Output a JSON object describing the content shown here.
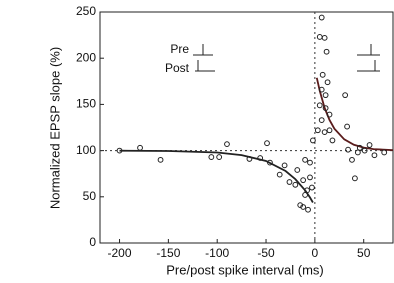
{
  "chart_data": {
    "type": "scatter",
    "xlabel": "Pre/post spike interval (ms)",
    "ylabel": "Normalized EPSP slope (%)",
    "inset_labels": [
      "Pre",
      "Post"
    ],
    "xlim": [
      -220,
      80
    ],
    "ylim": [
      0,
      250
    ],
    "xticks": [
      -200,
      -150,
      -100,
      -50,
      0,
      50
    ],
    "yticks": [
      0,
      50,
      100,
      150,
      200,
      250
    ],
    "points": {
      "color": "#222222",
      "x": [
        -200,
        -179,
        -158,
        -106,
        -98,
        -90,
        -67,
        -56,
        -49,
        -46,
        -36,
        -31,
        -26,
        -20,
        -18,
        -15,
        -12,
        -10,
        -8,
        -7,
        -5,
        -3,
        -5,
        -12,
        -10,
        -2,
        7,
        5,
        10,
        12,
        8,
        13,
        7,
        11,
        5,
        11,
        15,
        7,
        3,
        10,
        15,
        18,
        31,
        33,
        34,
        38,
        41,
        46,
        51,
        56,
        61,
        71,
        44
      ],
      "y": [
        100,
        103,
        90,
        93,
        93,
        107,
        91,
        92,
        108,
        87,
        74,
        84,
        66,
        63,
        79,
        41,
        39,
        52,
        57,
        36,
        71,
        60,
        87,
        68,
        90,
        111,
        244,
        223,
        222,
        207,
        182,
        174,
        166,
        160,
        149,
        146,
        139,
        133,
        122,
        120,
        122,
        111,
        160,
        126,
        101,
        90,
        70,
        103,
        100,
        106,
        95,
        98,
        98
      ]
    },
    "fits": [
      {
        "color": "#222222",
        "x": [
          -200,
          -150,
          -100,
          -75,
          -50,
          -30,
          -20,
          -10,
          -5,
          -2
        ],
        "y": [
          99.9,
          99.6,
          97.9,
          95.1,
          88.7,
          77.9,
          69.2,
          57.0,
          49.2,
          43.8
        ]
      },
      {
        "color": "#5a1c1c",
        "x": [
          2,
          5,
          10,
          15,
          20,
          30,
          40,
          50,
          60,
          80
        ],
        "y": [
          178.8,
          164.5,
          146.2,
          133.1,
          123.7,
          112.2,
          106.3,
          103.2,
          101.6,
          100.4
        ]
      }
    ]
  }
}
